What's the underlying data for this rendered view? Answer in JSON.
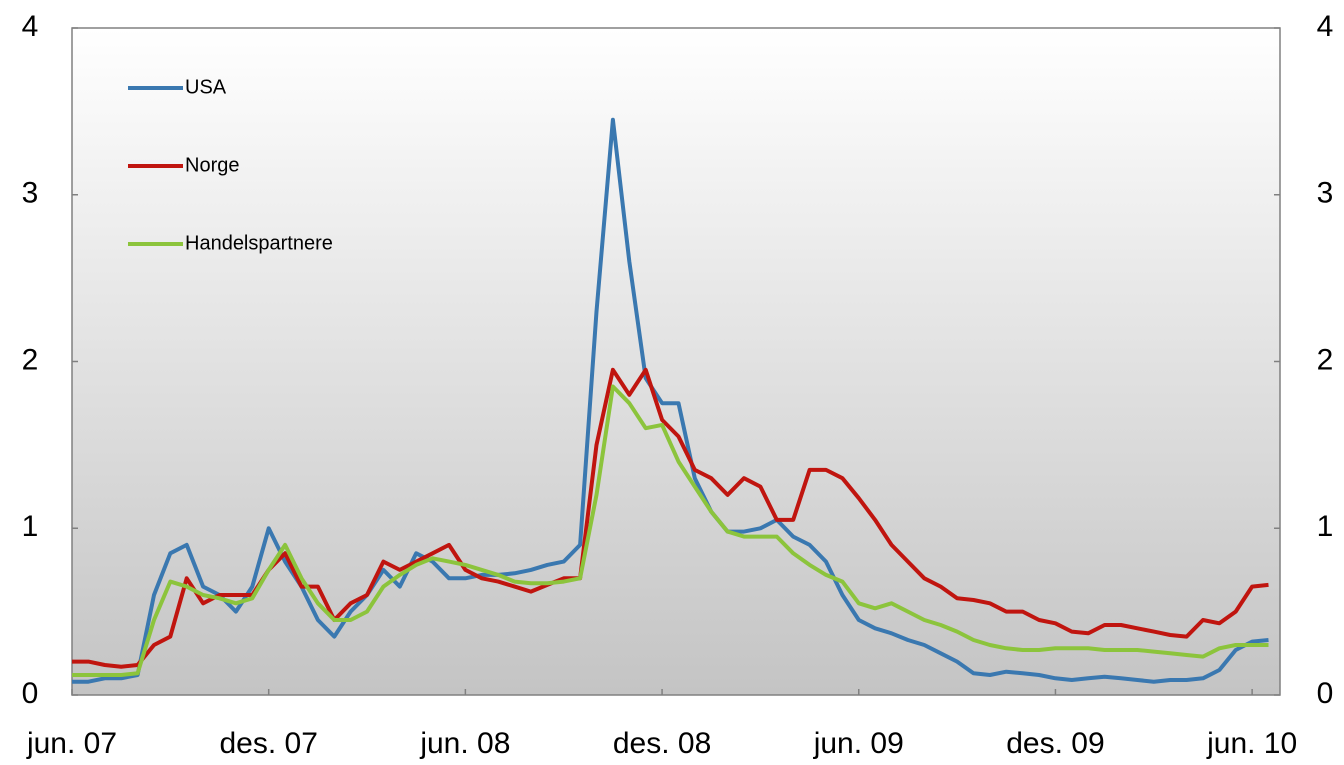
{
  "chart_data": {
    "type": "line",
    "categories": [
      "jun. 07",
      null,
      null,
      null,
      null,
      null,
      null,
      null,
      null,
      null,
      null,
      null,
      "des. 07",
      null,
      null,
      null,
      null,
      null,
      null,
      null,
      null,
      null,
      null,
      null,
      "jun. 08",
      null,
      null,
      null,
      null,
      null,
      null,
      null,
      null,
      null,
      null,
      null,
      "des. 08",
      null,
      null,
      null,
      null,
      null,
      null,
      null,
      null,
      null,
      null,
      null,
      "jun. 09",
      null,
      null,
      null,
      null,
      null,
      null,
      null,
      null,
      null,
      null,
      null,
      "des. 09",
      null,
      null,
      null,
      null,
      null,
      null,
      null,
      null,
      null,
      null,
      null,
      "jun. 10",
      null
    ],
    "series": [
      {
        "name": "USA",
        "color": "#3a78b0",
        "values": [
          0.08,
          0.08,
          0.1,
          0.1,
          0.12,
          0.6,
          0.85,
          0.9,
          0.65,
          0.6,
          0.5,
          0.65,
          1.0,
          0.8,
          0.65,
          0.45,
          0.35,
          0.5,
          0.6,
          0.75,
          0.65,
          0.85,
          0.8,
          0.7,
          0.7,
          0.72,
          0.72,
          0.73,
          0.75,
          0.78,
          0.8,
          0.9,
          2.3,
          3.45,
          2.6,
          1.9,
          1.75,
          1.75,
          1.3,
          1.1,
          0.98,
          0.98,
          1.0,
          1.05,
          0.95,
          0.9,
          0.8,
          0.6,
          0.45,
          0.4,
          0.37,
          0.33,
          0.3,
          0.25,
          0.2,
          0.13,
          0.12,
          0.14,
          0.13,
          0.12,
          0.1,
          0.09,
          0.1,
          0.11,
          0.1,
          0.09,
          0.08,
          0.09,
          0.09,
          0.1,
          0.15,
          0.27,
          0.32,
          0.33
        ]
      },
      {
        "name": "Norge",
        "color": "#c0150f",
        "values": [
          0.2,
          0.2,
          0.18,
          0.17,
          0.18,
          0.3,
          0.35,
          0.7,
          0.55,
          0.6,
          0.6,
          0.6,
          0.75,
          0.85,
          0.65,
          0.65,
          0.45,
          0.55,
          0.6,
          0.8,
          0.75,
          0.8,
          0.85,
          0.9,
          0.75,
          0.7,
          0.68,
          0.65,
          0.62,
          0.66,
          0.7,
          0.7,
          1.5,
          1.95,
          1.8,
          1.95,
          1.65,
          1.55,
          1.35,
          1.3,
          1.2,
          1.3,
          1.25,
          1.05,
          1.05,
          1.35,
          1.35,
          1.3,
          1.18,
          1.05,
          0.9,
          0.8,
          0.7,
          0.65,
          0.58,
          0.57,
          0.55,
          0.5,
          0.5,
          0.45,
          0.43,
          0.38,
          0.37,
          0.42,
          0.42,
          0.4,
          0.38,
          0.36,
          0.35,
          0.45,
          0.43,
          0.5,
          0.65,
          0.66
        ]
      },
      {
        "name": "Handelspartnere",
        "color": "#8cc43c",
        "values": [
          0.12,
          0.12,
          0.12,
          0.12,
          0.13,
          0.45,
          0.68,
          0.65,
          0.6,
          0.58,
          0.55,
          0.58,
          0.75,
          0.9,
          0.7,
          0.55,
          0.45,
          0.45,
          0.5,
          0.65,
          0.72,
          0.78,
          0.82,
          0.8,
          0.78,
          0.75,
          0.72,
          0.68,
          0.67,
          0.67,
          0.68,
          0.7,
          1.2,
          1.85,
          1.75,
          1.6,
          1.62,
          1.4,
          1.25,
          1.1,
          0.98,
          0.95,
          0.95,
          0.95,
          0.85,
          0.78,
          0.72,
          0.68,
          0.55,
          0.52,
          0.55,
          0.5,
          0.45,
          0.42,
          0.38,
          0.33,
          0.3,
          0.28,
          0.27,
          0.27,
          0.28,
          0.28,
          0.28,
          0.27,
          0.27,
          0.27,
          0.26,
          0.25,
          0.24,
          0.23,
          0.28,
          0.3,
          0.3,
          0.3
        ]
      }
    ],
    "ylim": [
      0,
      4
    ],
    "yticks": [
      0,
      1,
      2,
      3,
      4
    ],
    "y2lim": [
      0,
      4
    ],
    "y2ticks": [
      0,
      1,
      2,
      3,
      4
    ],
    "legend": "top-left"
  }
}
